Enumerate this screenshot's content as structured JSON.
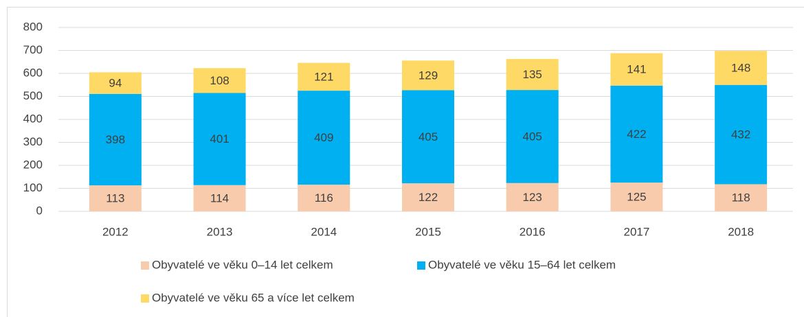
{
  "chart_data": {
    "type": "stacked_bar",
    "categories": [
      "2012",
      "2013",
      "2014",
      "2015",
      "2016",
      "2017",
      "2018"
    ],
    "series": [
      {
        "name": "Obyvatelé ve věku 0–14 let celkem",
        "color": "#f8cbad",
        "values": [
          113,
          114,
          116,
          122,
          123,
          125,
          118
        ]
      },
      {
        "name": "Obyvatelé ve věku 15–64 let celkem",
        "color": "#00b0f0",
        "values": [
          398,
          401,
          409,
          405,
          405,
          422,
          432
        ]
      },
      {
        "name": "Obyvatelé ve věku 65 a více let celkem",
        "color": "#ffd966",
        "values": [
          94,
          108,
          121,
          129,
          135,
          141,
          148
        ]
      }
    ],
    "ylim": [
      0,
      800
    ],
    "yticks": [
      0,
      100,
      200,
      300,
      400,
      500,
      600,
      700,
      800
    ],
    "grid": true
  }
}
